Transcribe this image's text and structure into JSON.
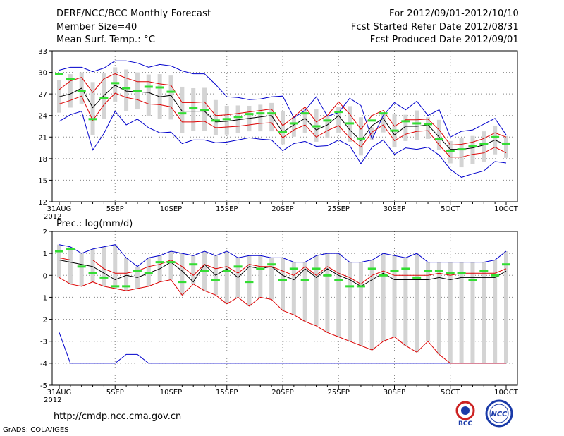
{
  "header": {
    "title": "DERF/NCC/BCC Monthly Forecast",
    "member": "Member Size=40",
    "variable": "Mean Surf. Temp.: °C",
    "period": "For 2012/09/01-2012/10/10",
    "started": "Fcst Started Refer Date 2012/08/31",
    "produced": "Fcst Produced Date 2012/09/01"
  },
  "panel2_title": "Prec.: log(mm/d)",
  "footer": {
    "url": "http://cmdp.ncc.cma.gov.cn",
    "credit": "GrADS: COLA/IGES"
  },
  "logos": {
    "bcc": "BCC",
    "ncc": "NCC"
  },
  "colors": {
    "max_min": "#0000cc",
    "spread": "#dd0000",
    "mean": "#000000",
    "obs": "#33dd33",
    "box": "#d4d4d4",
    "grid": "#888888"
  },
  "chart_data": [
    {
      "type": "line",
      "title": "Mean Surf. Temp.: °C",
      "x_start_label": "31AUG",
      "x_year": "2012",
      "x_ticks": [
        "31AUG",
        "5SEP",
        "10SEP",
        "15SEP",
        "20SEP",
        "25SEP",
        "30SEP",
        "5OCT",
        "10OCT"
      ],
      "ylim": [
        12,
        33
      ],
      "yticks": [
        12,
        15,
        18,
        21,
        24,
        27,
        30,
        33
      ],
      "days": 41,
      "series": [
        {
          "name": "max",
          "values": [
            30.3,
            30.7,
            30.7,
            30.1,
            30.6,
            31.6,
            31.6,
            31.3,
            30.7,
            31.1,
            30.9,
            30.2,
            29.8,
            29.8,
            28.3,
            26.6,
            26.5,
            26.2,
            26.3,
            26.6,
            26.7,
            23.7,
            24.7,
            26.6,
            23.9,
            24.4,
            26.4,
            25.4,
            20.7,
            24.0,
            25.8,
            24.8,
            26.0,
            24.0,
            24.8,
            21.0,
            21.8,
            22.0,
            22.8,
            23.6,
            21.3
          ]
        },
        {
          "name": "p_high",
          "values": [
            27.6,
            28.8,
            29.3,
            27.2,
            29.1,
            29.8,
            29.2,
            28.7,
            28.7,
            28.4,
            28.2,
            25.8,
            25.8,
            25.9,
            24.0,
            24.1,
            24.3,
            24.5,
            24.7,
            24.9,
            22.6,
            23.8,
            25.2,
            23.1,
            24.0,
            25.9,
            24.2,
            22.1,
            24.0,
            24.7,
            22.5,
            23.4,
            23.4,
            23.5,
            22.0,
            19.9,
            20.0,
            20.3,
            20.8,
            21.6,
            21.0
          ]
        },
        {
          "name": "mean",
          "values": [
            26.6,
            27.0,
            27.8,
            25.1,
            26.8,
            28.2,
            27.4,
            27.3,
            27.2,
            26.6,
            26.8,
            24.6,
            24.6,
            24.6,
            23.1,
            23.2,
            23.4,
            23.6,
            23.8,
            24.0,
            21.7,
            22.7,
            23.6,
            22.0,
            22.7,
            24.0,
            22.0,
            20.5,
            22.6,
            23.6,
            21.3,
            22.5,
            22.5,
            22.7,
            21.0,
            19.3,
            19.3,
            19.5,
            19.9,
            20.6,
            19.9
          ]
        },
        {
          "name": "p_low",
          "values": [
            25.6,
            26.1,
            26.7,
            23.3,
            25.5,
            27.1,
            26.5,
            26.2,
            25.6,
            25.5,
            25.2,
            23.1,
            23.1,
            23.2,
            22.3,
            22.4,
            22.5,
            22.7,
            22.9,
            23.0,
            20.9,
            22.0,
            22.7,
            21.0,
            21.9,
            22.6,
            20.9,
            19.6,
            21.7,
            22.7,
            20.5,
            21.4,
            21.8,
            21.9,
            19.9,
            18.2,
            18.2,
            18.6,
            18.8,
            19.6,
            18.8
          ]
        },
        {
          "name": "min",
          "values": [
            23.2,
            24.1,
            24.6,
            19.2,
            21.5,
            24.6,
            22.7,
            23.5,
            22.3,
            21.6,
            21.7,
            20.1,
            20.6,
            20.6,
            20.2,
            20.3,
            20.6,
            20.9,
            20.7,
            20.6,
            19.1,
            20.1,
            20.4,
            19.7,
            19.8,
            20.6,
            19.8,
            17.3,
            19.6,
            20.6,
            18.6,
            19.5,
            19.3,
            19.6,
            18.5,
            16.5,
            15.4,
            15.9,
            16.3,
            17.6,
            17.4
          ]
        }
      ],
      "observations": [
        29.8,
        29.1,
        27.4,
        23.5,
        26.4,
        28.5,
        27.8,
        27.4,
        28.0,
        27.9,
        27.3,
        24.3,
        25.0,
        24.8,
        23.3,
        23.5,
        23.8,
        24.2,
        24.3,
        24.3,
        21.7,
        22.9,
        24.3,
        22.5,
        23.3,
        24.5,
        22.9,
        20.8,
        23.3,
        24.3,
        21.9,
        23.2,
        22.9,
        22.8,
        20.7,
        19.1,
        19.3,
        19.7,
        20.0,
        21.0,
        20.1
      ]
    },
    {
      "type": "line",
      "title": "Prec.: log(mm/d)",
      "x_start_label": "31AUG",
      "x_year": "2012",
      "x_ticks": [
        "31AUG",
        "5SEP",
        "10SEP",
        "15SEP",
        "20SEP",
        "25SEP",
        "30SEP",
        "5OCT",
        "10OCT"
      ],
      "ylim": [
        -5,
        2
      ],
      "yticks": [
        -5,
        -4,
        -3,
        -2,
        -1,
        0,
        1,
        2
      ],
      "days": 41,
      "series": [
        {
          "name": "max",
          "values": [
            -2.6,
            -4.0,
            -4.0,
            -4.0,
            -4.0,
            -4.0,
            -3.6,
            -3.6,
            -4.0,
            -4.0,
            -4.0,
            -4.0,
            -4.0,
            -4.0,
            -4.0,
            -4.0,
            -4.0,
            -4.0,
            -4.0,
            -4.0,
            -4.0,
            -4.0,
            -4.0,
            -4.0,
            -4.0,
            -4.0,
            -4.0,
            -4.0,
            -4.0,
            -4.0,
            -4.0,
            -4.0,
            -4.0,
            -4.0,
            -4.0,
            -4.0,
            -4.0,
            -4.0,
            -4.0,
            -4.0,
            -4.0
          ]
        },
        {
          "name": "min_spread",
          "values": [
            -0.1,
            -0.4,
            -0.5,
            -0.3,
            -0.5,
            -0.6,
            -0.7,
            -0.6,
            -0.5,
            -0.3,
            -0.2,
            -0.9,
            -0.4,
            -0.7,
            -0.9,
            -1.3,
            -1.0,
            -1.4,
            -1.0,
            -1.1,
            -1.6,
            -1.8,
            -2.1,
            -2.3,
            -2.6,
            -2.8,
            -3.0,
            -3.2,
            -3.4,
            -3.0,
            -2.8,
            -3.2,
            -3.5,
            -3.0,
            -3.6,
            -4.0,
            -4.0,
            -4.0,
            -4.0,
            -4.0,
            -4.0
          ]
        },
        {
          "name": "mean",
          "values": [
            0.7,
            0.6,
            0.5,
            0.4,
            0.1,
            -0.2,
            0.0,
            -0.1,
            0.1,
            0.3,
            0.6,
            0.2,
            -0.3,
            0.5,
            0.0,
            0.3,
            -0.1,
            0.4,
            0.3,
            0.4,
            0.0,
            -0.2,
            0.3,
            -0.1,
            0.3,
            0.0,
            -0.2,
            -0.5,
            -0.2,
            0.1,
            -0.2,
            -0.2,
            -0.2,
            -0.2,
            -0.1,
            -0.2,
            -0.1,
            -0.1,
            -0.1,
            -0.1,
            0.2
          ]
        },
        {
          "name": "top_spread",
          "values": [
            0.8,
            0.7,
            0.7,
            0.7,
            0.3,
            0.1,
            0.1,
            0.2,
            0.4,
            0.5,
            0.7,
            0.4,
            0.0,
            0.5,
            0.3,
            0.4,
            0.1,
            0.5,
            0.4,
            0.4,
            0.2,
            0.0,
            0.4,
            0.0,
            0.4,
            0.1,
            -0.1,
            -0.4,
            0.0,
            0.2,
            0.0,
            0.0,
            0.0,
            0.0,
            0.1,
            0.0,
            0.1,
            0.1,
            0.1,
            0.1,
            0.3
          ]
        },
        {
          "name": "max_blue",
          "values": [
            1.4,
            1.3,
            1.0,
            1.2,
            1.3,
            1.4,
            0.8,
            0.4,
            0.8,
            0.9,
            1.1,
            1.0,
            0.9,
            1.1,
            0.9,
            1.1,
            0.8,
            0.9,
            0.9,
            0.8,
            0.8,
            0.6,
            0.6,
            0.9,
            1.0,
            1.0,
            0.6,
            0.6,
            0.7,
            1.0,
            0.9,
            0.8,
            1.0,
            0.6,
            0.6,
            0.6,
            0.6,
            0.6,
            0.6,
            0.7,
            1.1
          ]
        }
      ],
      "observations": [
        1.1,
        1.2,
        0.4,
        0.1,
        -0.1,
        -0.5,
        -0.5,
        0.2,
        0.1,
        0.6,
        0.6,
        -0.3,
        0.5,
        0.2,
        -0.2,
        0.2,
        0.4,
        -0.3,
        0.3,
        0.5,
        -0.2,
        0.3,
        -0.2,
        0.3,
        0.0,
        -0.2,
        -0.5,
        -0.5,
        0.3,
        0.0,
        0.2,
        0.3,
        -0.1,
        0.2,
        0.2,
        0.1,
        0.1,
        -0.2,
        0.2,
        0.0,
        0.5
      ]
    }
  ]
}
